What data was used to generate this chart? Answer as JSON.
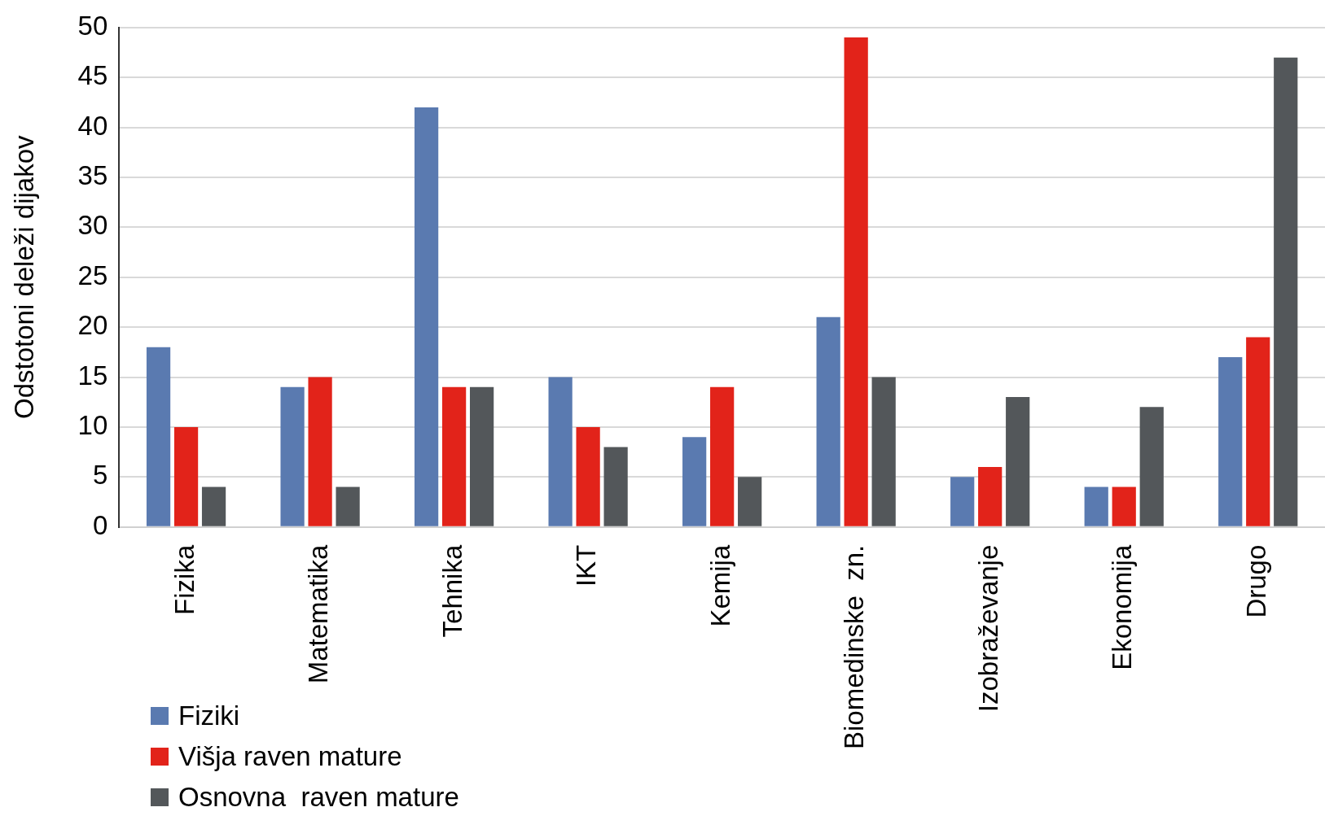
{
  "chart_data": {
    "type": "bar",
    "ylabel": "Odstotoni deleži dijakov",
    "categories": [
      "Fizika",
      "Matematika",
      "Tehnika",
      "IKT",
      "Kemija",
      "Biomedinske  zn.",
      "Izobraževanje",
      "Ekonomija",
      "Drugo"
    ],
    "series": [
      {
        "name": "Fiziki",
        "color": "#5a7ab0",
        "values": [
          18,
          14,
          42,
          15,
          9,
          21,
          5,
          4,
          17
        ]
      },
      {
        "name": "Višja raven mature",
        "color": "#e2231a",
        "values": [
          10,
          15,
          14,
          10,
          14,
          49,
          6,
          4,
          19
        ]
      },
      {
        "name": "Osnovna  raven mature",
        "color": "#53575a",
        "values": [
          4,
          4,
          14,
          8,
          5,
          15,
          13,
          12,
          47
        ]
      }
    ],
    "ylim": [
      0,
      50
    ],
    "yticks": [
      0,
      5,
      10,
      15,
      20,
      25,
      30,
      35,
      40,
      45,
      50
    ],
    "grid": "y",
    "legend": "bottom left"
  }
}
